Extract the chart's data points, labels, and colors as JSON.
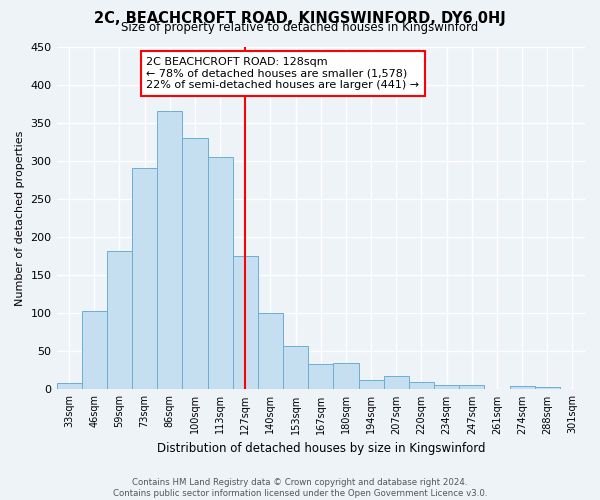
{
  "title": "2C, BEACHCROFT ROAD, KINGSWINFORD, DY6 0HJ",
  "subtitle": "Size of property relative to detached houses in Kingswinford",
  "xlabel": "Distribution of detached houses by size in Kingswinford",
  "ylabel": "Number of detached properties",
  "categories": [
    "33sqm",
    "46sqm",
    "59sqm",
    "73sqm",
    "86sqm",
    "100sqm",
    "113sqm",
    "127sqm",
    "140sqm",
    "153sqm",
    "167sqm",
    "180sqm",
    "194sqm",
    "207sqm",
    "220sqm",
    "234sqm",
    "247sqm",
    "261sqm",
    "274sqm",
    "288sqm",
    "301sqm"
  ],
  "values": [
    8,
    103,
    181,
    290,
    365,
    330,
    305,
    175,
    100,
    57,
    33,
    35,
    12,
    17,
    10,
    6,
    6,
    0,
    5,
    3,
    0
  ],
  "bar_color": "#c5dff0",
  "bar_edge_color": "#6baed6",
  "vertical_line_x_label": "127sqm",
  "vertical_line_color": "red",
  "annotation_title": "2C BEACHCROFT ROAD: 128sqm",
  "annotation_line1": "← 78% of detached houses are smaller (1,578)",
  "annotation_line2": "22% of semi-detached houses are larger (441) →",
  "annotation_box_color": "white",
  "annotation_box_edge_color": "red",
  "ylim": [
    0,
    450
  ],
  "yticks": [
    0,
    50,
    100,
    150,
    200,
    250,
    300,
    350,
    400,
    450
  ],
  "footer_line1": "Contains HM Land Registry data © Crown copyright and database right 2024.",
  "footer_line2": "Contains public sector information licensed under the Open Government Licence v3.0.",
  "background_color": "#eef3f8",
  "grid_color": "white"
}
